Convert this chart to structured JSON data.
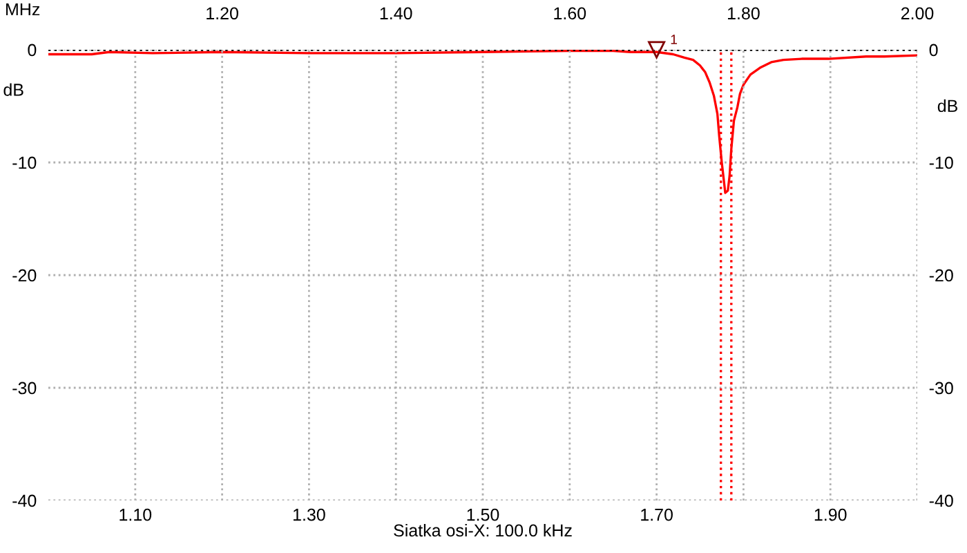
{
  "chart_data": {
    "type": "line",
    "xlabel": "MHz",
    "ylabel": "dB",
    "y2label": "dB",
    "x": [
      1.0,
      1.05,
      1.07,
      1.12,
      1.2,
      1.3,
      1.4,
      1.5,
      1.6,
      1.65,
      1.67,
      1.7,
      1.719,
      1.732,
      1.742,
      1.75,
      1.756,
      1.761,
      1.766,
      1.77,
      1.772,
      1.775,
      1.778,
      1.779,
      1.782,
      1.784,
      1.786,
      1.789,
      1.793,
      1.796,
      1.8,
      1.808,
      1.819,
      1.832,
      1.846,
      1.867,
      1.898,
      1.941,
      1.962,
      2.0
    ],
    "series": [
      {
        "color": "#ff0000",
        "values": [
          -0.4,
          -0.4,
          -0.2,
          -0.3,
          -0.2,
          -0.3,
          -0.3,
          -0.2,
          -0.1,
          -0.1,
          -0.2,
          -0.2,
          -0.4,
          -0.7,
          -0.9,
          -1.4,
          -2.0,
          -2.9,
          -4.1,
          -5.7,
          -7.6,
          -10.0,
          -12.0,
          -12.7,
          -12.5,
          -11.2,
          -8.8,
          -6.3,
          -5.1,
          -3.9,
          -3.1,
          -2.2,
          -1.6,
          -1.1,
          -0.9,
          -0.8,
          -0.8,
          -0.6,
          -0.6,
          -0.5
        ]
      }
    ],
    "xlim": [
      1.0,
      2.0
    ],
    "xticks": [
      {
        "value": 1.1,
        "label": "1.10"
      },
      {
        "value": 1.3,
        "label": "1.30"
      },
      {
        "value": 1.5,
        "label": "1.50"
      },
      {
        "value": 1.7,
        "label": "1.70"
      },
      {
        "value": 1.9,
        "label": "1.90"
      }
    ],
    "x2lim": [
      1.0,
      2.0
    ],
    "x2ticks": [
      {
        "value": 1.2,
        "label": "1.20"
      },
      {
        "value": 1.4,
        "label": "1.40"
      },
      {
        "value": 1.6,
        "label": "1.60"
      },
      {
        "value": 1.8,
        "label": "1.80"
      },
      {
        "value": 2.0,
        "label": "2.00"
      }
    ],
    "ylim": [
      -40,
      0
    ],
    "yticks": [
      -40,
      -30,
      -20,
      -10,
      0
    ],
    "y2lim": [
      -40,
      0
    ],
    "y2ticks": [
      -40,
      -30,
      -20,
      -10,
      0
    ],
    "ref_lines": [
      {
        "axis": "y",
        "value": 0,
        "color": "#000000",
        "line_style": "dotted"
      },
      {
        "axis": "x",
        "value": 1.774,
        "color": "#ff0000",
        "line_style": "dotted"
      },
      {
        "axis": "x",
        "value": 1.786,
        "color": "#ff0000",
        "line_style": "dotted"
      }
    ],
    "annotations": [
      {
        "text": "1",
        "x": 1.7,
        "y": 0
      },
      "Siatka osi-X: 100.0 kHz"
    ],
    "grid": true,
    "marker": "none",
    "line_style": "solid"
  }
}
